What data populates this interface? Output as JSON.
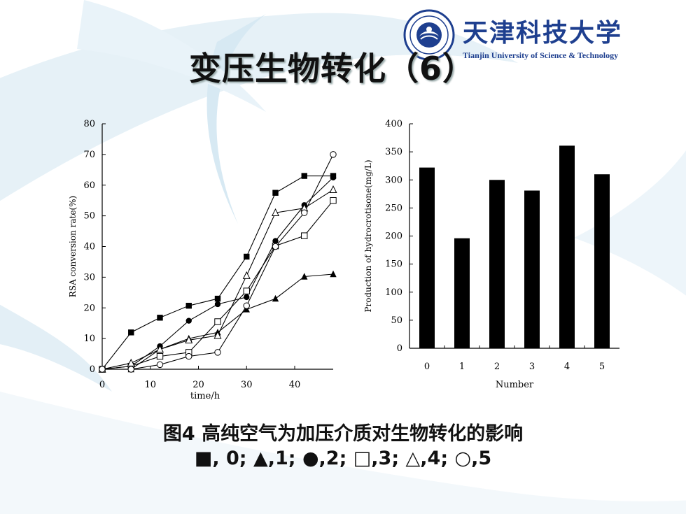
{
  "slide": {
    "title": "变压生物转化（6）",
    "logo_cn": "天津科技大学",
    "logo_en": "Tianjin University of Science & Technology",
    "caption_line1": "图4  高纯空气为加压介质对生物转化的影响",
    "caption_line2": "■, 0;   ▲,1;   ●,2;   □,3;   △,4;   ○,5"
  },
  "chart_data": [
    {
      "type": "line",
      "xlabel": "time/h",
      "ylabel": "RSA conversion rate(%)",
      "xlim": [
        0,
        48
      ],
      "ylim": [
        0,
        80
      ],
      "xticks": [
        0,
        10,
        20,
        30,
        40
      ],
      "yticks": [
        0,
        10,
        20,
        30,
        40,
        50,
        60,
        70,
        80
      ],
      "x": [
        0,
        6,
        12,
        18,
        24,
        30,
        36,
        42,
        48
      ],
      "series": [
        {
          "marker": "filled-square",
          "values": [
            0,
            12,
            16.8,
            20.7,
            23,
            36.7,
            57.5,
            63,
            63
          ]
        },
        {
          "marker": "filled-triangle",
          "values": [
            0,
            0,
            6.5,
            10,
            12,
            19.5,
            23,
            30.2,
            31
          ]
        },
        {
          "marker": "filled-circle",
          "values": [
            0,
            1,
            7.5,
            15.8,
            21.2,
            23.5,
            41.8,
            53.5,
            62.5
          ]
        },
        {
          "marker": "open-square",
          "values": [
            0,
            1,
            4.2,
            5.5,
            15.5,
            25.5,
            40.2,
            43.5,
            55
          ]
        },
        {
          "marker": "open-triangle",
          "values": [
            0,
            2,
            6.5,
            9.5,
            11,
            30.5,
            51,
            52.5,
            58.5
          ]
        },
        {
          "marker": "open-circle",
          "values": [
            0,
            0,
            1.5,
            4.2,
            5.5,
            20.7,
            40,
            51,
            70
          ]
        }
      ]
    },
    {
      "type": "bar",
      "xlabel": "Number",
      "ylabel": "Production of hydrocrotisone(mg/L)",
      "ylim": [
        0,
        400
      ],
      "yticks": [
        0,
        50,
        100,
        150,
        200,
        250,
        300,
        350,
        400
      ],
      "categories": [
        "0",
        "1",
        "2",
        "3",
        "4",
        "5"
      ],
      "values": [
        322,
        196,
        300,
        281,
        361,
        310
      ],
      "bar_color": "#000000"
    }
  ]
}
